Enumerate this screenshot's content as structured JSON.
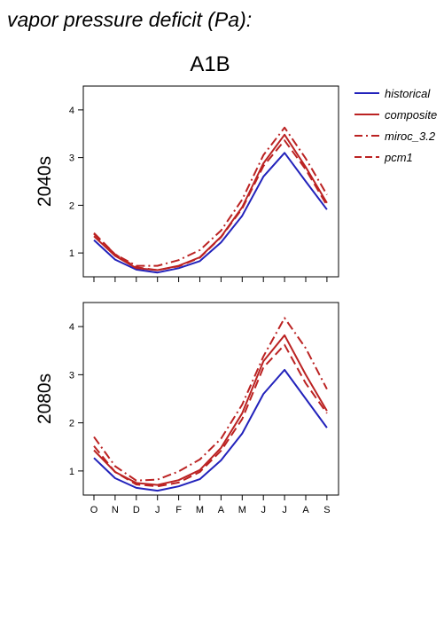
{
  "page_title": "vapor pressure deficit (Pa):",
  "scenario_title": "A1B",
  "colors": {
    "historical": "#2222bb",
    "future": "#bb2222",
    "axis": "#000000"
  },
  "legend": [
    {
      "name": "historical",
      "color": "#2222bb",
      "dash": "solid"
    },
    {
      "name": "composite",
      "color": "#bb2222",
      "dash": "solid"
    },
    {
      "name": "miroc_3.2",
      "color": "#bb2222",
      "dash": "dashdot"
    },
    {
      "name": "pcm1",
      "color": "#bb2222",
      "dash": "dash"
    }
  ],
  "chart_data": [
    {
      "type": "line",
      "panel_label": "2040s",
      "categories": [
        "O",
        "N",
        "D",
        "J",
        "F",
        "M",
        "A",
        "M",
        "J",
        "J",
        "A",
        "S"
      ],
      "ylim": [
        0.5,
        4.5
      ],
      "yticks": [
        1,
        2,
        3,
        4
      ],
      "series": [
        {
          "name": "historical",
          "values": [
            1.27,
            0.86,
            0.65,
            0.59,
            0.68,
            0.83,
            1.22,
            1.78,
            2.6,
            3.1,
            2.5,
            1.91
          ]
        },
        {
          "name": "composite",
          "values": [
            1.35,
            0.94,
            0.68,
            0.64,
            0.73,
            0.91,
            1.34,
            1.96,
            2.88,
            3.48,
            2.8,
            2.05
          ]
        },
        {
          "name": "miroc_3.2",
          "values": [
            1.4,
            0.97,
            0.73,
            0.73,
            0.85,
            1.06,
            1.47,
            2.12,
            3.05,
            3.63,
            2.98,
            2.22
          ]
        },
        {
          "name": "pcm1",
          "values": [
            1.42,
            0.97,
            0.7,
            0.64,
            0.72,
            0.9,
            1.33,
            1.93,
            2.82,
            3.36,
            2.75,
            2.0
          ]
        }
      ]
    },
    {
      "type": "line",
      "panel_label": "2080s",
      "categories": [
        "O",
        "N",
        "D",
        "J",
        "F",
        "M",
        "A",
        "M",
        "J",
        "J",
        "A",
        "S"
      ],
      "ylim": [
        0.5,
        4.5
      ],
      "yticks": [
        1,
        2,
        3,
        4
      ],
      "series": [
        {
          "name": "historical",
          "values": [
            1.27,
            0.85,
            0.65,
            0.59,
            0.68,
            0.83,
            1.22,
            1.78,
            2.6,
            3.1,
            2.5,
            1.9
          ]
        },
        {
          "name": "composite",
          "values": [
            1.43,
            0.98,
            0.75,
            0.71,
            0.81,
            1.02,
            1.48,
            2.2,
            3.28,
            3.82,
            3.0,
            2.25
          ]
        },
        {
          "name": "miroc_3.2",
          "values": [
            1.71,
            1.1,
            0.8,
            0.82,
            0.99,
            1.24,
            1.67,
            2.38,
            3.38,
            4.18,
            3.55,
            2.7
          ]
        },
        {
          "name": "pcm1",
          "values": [
            1.52,
            0.98,
            0.72,
            0.68,
            0.76,
            0.98,
            1.42,
            2.08,
            3.15,
            3.62,
            2.82,
            2.2
          ]
        }
      ]
    }
  ]
}
